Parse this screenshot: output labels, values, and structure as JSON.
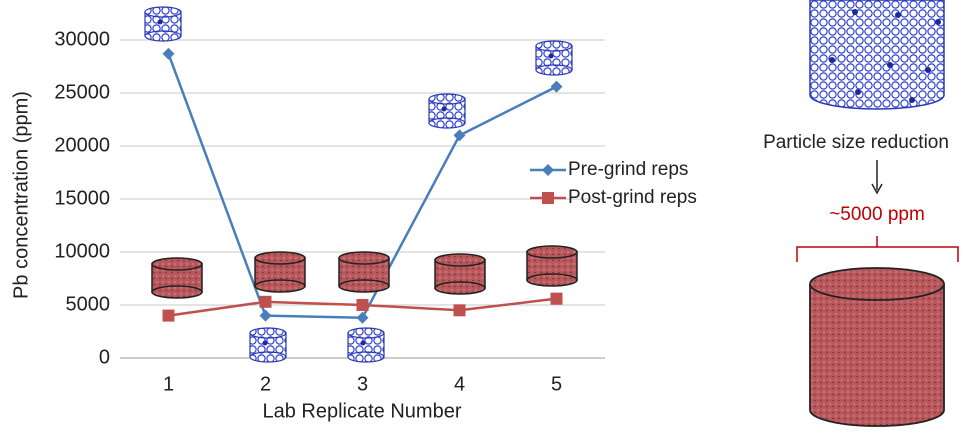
{
  "chart_data": {
    "type": "line",
    "x_label": "Lab Replicate Number",
    "y_label": "Pb concentration (ppm)",
    "categories": [
      "1",
      "2",
      "3",
      "4",
      "5"
    ],
    "series": [
      {
        "name": "Pre-grind reps",
        "color": "#4a7ebb",
        "marker": "diamond",
        "values": [
          28700,
          4000,
          3800,
          21000,
          25600
        ]
      },
      {
        "name": "Post-grind reps",
        "color": "#c0504d",
        "marker": "square",
        "values": [
          4000,
          5300,
          5000,
          4500,
          5600
        ]
      }
    ],
    "ylim": [
      0,
      30000
    ],
    "yticks": [
      0,
      5000,
      10000,
      15000,
      20000,
      25000,
      30000
    ],
    "grid": true,
    "legend": "right",
    "annotations": [
      "Particle size reduction",
      "~5000 ppm"
    ]
  }
}
